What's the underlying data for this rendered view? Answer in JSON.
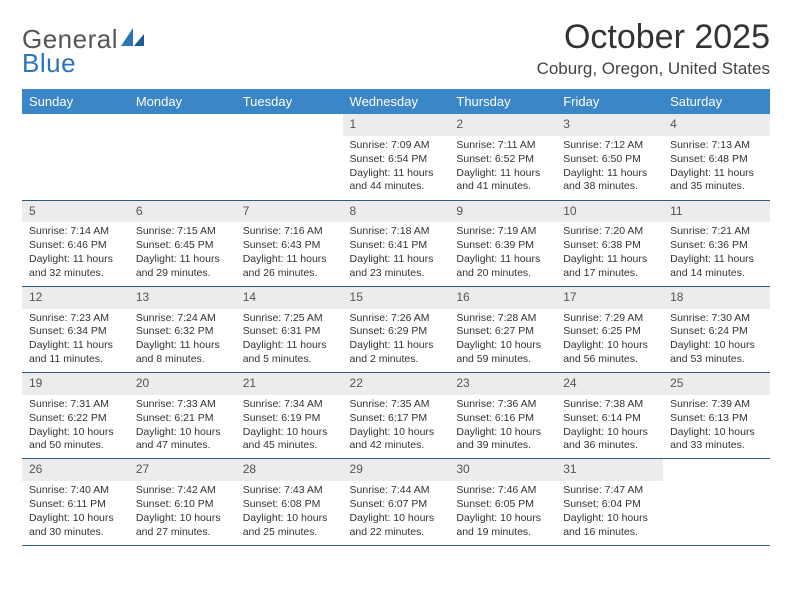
{
  "brand": {
    "name1": "General",
    "name2": "Blue"
  },
  "title": "October 2025",
  "location": "Coburg, Oregon, United States",
  "colors": {
    "header_bg": "#3b86c6",
    "header_text": "#ffffff",
    "daynum_bg": "#ececec",
    "row_border": "#2f5a85",
    "brand_blue": "#2b74b8"
  },
  "weekdays": [
    "Sunday",
    "Monday",
    "Tuesday",
    "Wednesday",
    "Thursday",
    "Friday",
    "Saturday"
  ],
  "weeks": [
    [
      {
        "n": "",
        "lines": [
          "",
          "",
          "",
          ""
        ]
      },
      {
        "n": "",
        "lines": [
          "",
          "",
          "",
          ""
        ]
      },
      {
        "n": "",
        "lines": [
          "",
          "",
          "",
          ""
        ]
      },
      {
        "n": "1",
        "lines": [
          "Sunrise: 7:09 AM",
          "Sunset: 6:54 PM",
          "Daylight: 11 hours",
          "and 44 minutes."
        ]
      },
      {
        "n": "2",
        "lines": [
          "Sunrise: 7:11 AM",
          "Sunset: 6:52 PM",
          "Daylight: 11 hours",
          "and 41 minutes."
        ]
      },
      {
        "n": "3",
        "lines": [
          "Sunrise: 7:12 AM",
          "Sunset: 6:50 PM",
          "Daylight: 11 hours",
          "and 38 minutes."
        ]
      },
      {
        "n": "4",
        "lines": [
          "Sunrise: 7:13 AM",
          "Sunset: 6:48 PM",
          "Daylight: 11 hours",
          "and 35 minutes."
        ]
      }
    ],
    [
      {
        "n": "5",
        "lines": [
          "Sunrise: 7:14 AM",
          "Sunset: 6:46 PM",
          "Daylight: 11 hours",
          "and 32 minutes."
        ]
      },
      {
        "n": "6",
        "lines": [
          "Sunrise: 7:15 AM",
          "Sunset: 6:45 PM",
          "Daylight: 11 hours",
          "and 29 minutes."
        ]
      },
      {
        "n": "7",
        "lines": [
          "Sunrise: 7:16 AM",
          "Sunset: 6:43 PM",
          "Daylight: 11 hours",
          "and 26 minutes."
        ]
      },
      {
        "n": "8",
        "lines": [
          "Sunrise: 7:18 AM",
          "Sunset: 6:41 PM",
          "Daylight: 11 hours",
          "and 23 minutes."
        ]
      },
      {
        "n": "9",
        "lines": [
          "Sunrise: 7:19 AM",
          "Sunset: 6:39 PM",
          "Daylight: 11 hours",
          "and 20 minutes."
        ]
      },
      {
        "n": "10",
        "lines": [
          "Sunrise: 7:20 AM",
          "Sunset: 6:38 PM",
          "Daylight: 11 hours",
          "and 17 minutes."
        ]
      },
      {
        "n": "11",
        "lines": [
          "Sunrise: 7:21 AM",
          "Sunset: 6:36 PM",
          "Daylight: 11 hours",
          "and 14 minutes."
        ]
      }
    ],
    [
      {
        "n": "12",
        "lines": [
          "Sunrise: 7:23 AM",
          "Sunset: 6:34 PM",
          "Daylight: 11 hours",
          "and 11 minutes."
        ]
      },
      {
        "n": "13",
        "lines": [
          "Sunrise: 7:24 AM",
          "Sunset: 6:32 PM",
          "Daylight: 11 hours",
          "and 8 minutes."
        ]
      },
      {
        "n": "14",
        "lines": [
          "Sunrise: 7:25 AM",
          "Sunset: 6:31 PM",
          "Daylight: 11 hours",
          "and 5 minutes."
        ]
      },
      {
        "n": "15",
        "lines": [
          "Sunrise: 7:26 AM",
          "Sunset: 6:29 PM",
          "Daylight: 11 hours",
          "and 2 minutes."
        ]
      },
      {
        "n": "16",
        "lines": [
          "Sunrise: 7:28 AM",
          "Sunset: 6:27 PM",
          "Daylight: 10 hours",
          "and 59 minutes."
        ]
      },
      {
        "n": "17",
        "lines": [
          "Sunrise: 7:29 AM",
          "Sunset: 6:25 PM",
          "Daylight: 10 hours",
          "and 56 minutes."
        ]
      },
      {
        "n": "18",
        "lines": [
          "Sunrise: 7:30 AM",
          "Sunset: 6:24 PM",
          "Daylight: 10 hours",
          "and 53 minutes."
        ]
      }
    ],
    [
      {
        "n": "19",
        "lines": [
          "Sunrise: 7:31 AM",
          "Sunset: 6:22 PM",
          "Daylight: 10 hours",
          "and 50 minutes."
        ]
      },
      {
        "n": "20",
        "lines": [
          "Sunrise: 7:33 AM",
          "Sunset: 6:21 PM",
          "Daylight: 10 hours",
          "and 47 minutes."
        ]
      },
      {
        "n": "21",
        "lines": [
          "Sunrise: 7:34 AM",
          "Sunset: 6:19 PM",
          "Daylight: 10 hours",
          "and 45 minutes."
        ]
      },
      {
        "n": "22",
        "lines": [
          "Sunrise: 7:35 AM",
          "Sunset: 6:17 PM",
          "Daylight: 10 hours",
          "and 42 minutes."
        ]
      },
      {
        "n": "23",
        "lines": [
          "Sunrise: 7:36 AM",
          "Sunset: 6:16 PM",
          "Daylight: 10 hours",
          "and 39 minutes."
        ]
      },
      {
        "n": "24",
        "lines": [
          "Sunrise: 7:38 AM",
          "Sunset: 6:14 PM",
          "Daylight: 10 hours",
          "and 36 minutes."
        ]
      },
      {
        "n": "25",
        "lines": [
          "Sunrise: 7:39 AM",
          "Sunset: 6:13 PM",
          "Daylight: 10 hours",
          "and 33 minutes."
        ]
      }
    ],
    [
      {
        "n": "26",
        "lines": [
          "Sunrise: 7:40 AM",
          "Sunset: 6:11 PM",
          "Daylight: 10 hours",
          "and 30 minutes."
        ]
      },
      {
        "n": "27",
        "lines": [
          "Sunrise: 7:42 AM",
          "Sunset: 6:10 PM",
          "Daylight: 10 hours",
          "and 27 minutes."
        ]
      },
      {
        "n": "28",
        "lines": [
          "Sunrise: 7:43 AM",
          "Sunset: 6:08 PM",
          "Daylight: 10 hours",
          "and 25 minutes."
        ]
      },
      {
        "n": "29",
        "lines": [
          "Sunrise: 7:44 AM",
          "Sunset: 6:07 PM",
          "Daylight: 10 hours",
          "and 22 minutes."
        ]
      },
      {
        "n": "30",
        "lines": [
          "Sunrise: 7:46 AM",
          "Sunset: 6:05 PM",
          "Daylight: 10 hours",
          "and 19 minutes."
        ]
      },
      {
        "n": "31",
        "lines": [
          "Sunrise: 7:47 AM",
          "Sunset: 6:04 PM",
          "Daylight: 10 hours",
          "and 16 minutes."
        ]
      },
      {
        "n": "",
        "lines": [
          "",
          "",
          "",
          ""
        ]
      }
    ]
  ]
}
